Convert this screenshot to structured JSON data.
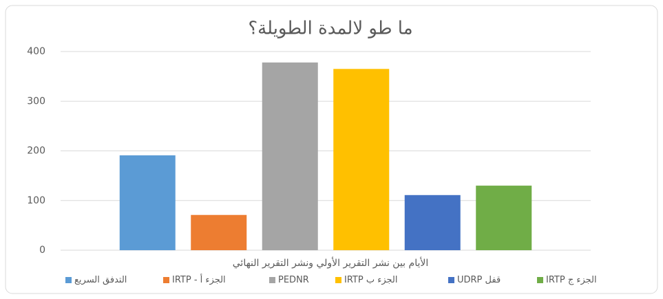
{
  "chart_data": {
    "type": "bar",
    "title": "ما طو لالمدة الطويلة؟",
    "x_label": "الأيام بين نشر التقرير الأولي ونشر التقرير النهائي",
    "categories": [
      null
    ],
    "series": [
      {
        "name": "التدفق السريع",
        "color": "#5b9bd5",
        "values": [
          191
        ]
      },
      {
        "name": "الجزء أ - IRTP",
        "color": "#ed7d31",
        "values": [
          71
        ]
      },
      {
        "name": "PEDNR",
        "color": "#a5a5a5",
        "values": [
          378
        ]
      },
      {
        "name": "الجزء ب IRTP",
        "color": "#ffc000",
        "values": [
          365
        ]
      },
      {
        "name": "قفل UDRP",
        "color": "#4472c4",
        "values": [
          111
        ]
      },
      {
        "name": "الجزء ج IRTP",
        "color": "#70ad47",
        "values": [
          130
        ]
      }
    ],
    "ylim": [
      0,
      400
    ],
    "yticks": [
      0,
      100,
      200,
      300,
      400
    ],
    "grid": true,
    "legend": "bottom"
  }
}
